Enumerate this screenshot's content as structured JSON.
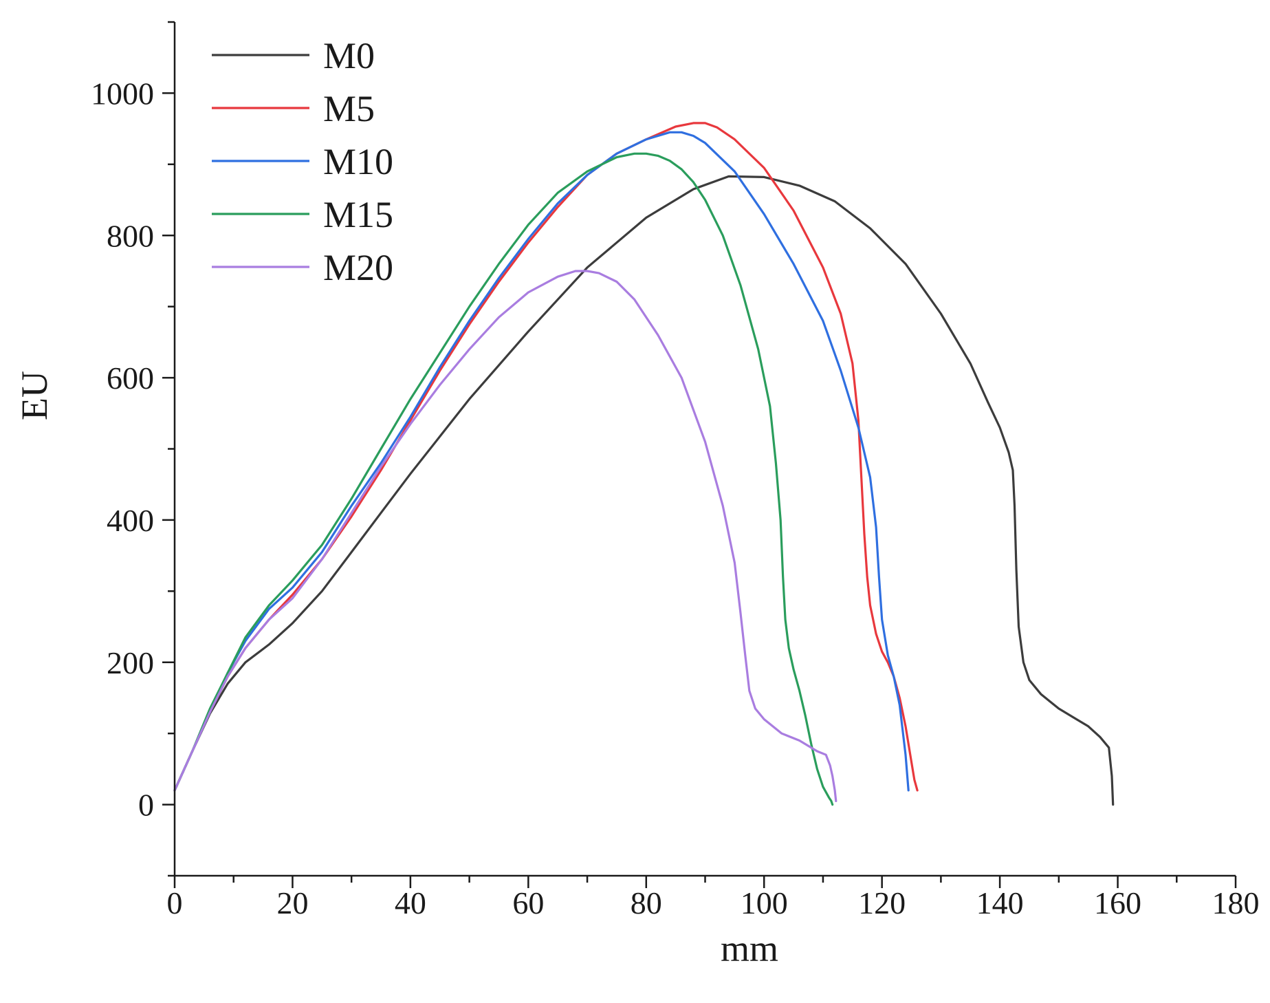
{
  "chart_data": {
    "type": "line",
    "xlabel": "mm",
    "ylabel": "EU",
    "xlim": [
      0,
      180
    ],
    "ylim": [
      -100,
      1100
    ],
    "xticks": [
      0,
      20,
      40,
      60,
      80,
      100,
      120,
      140,
      160,
      180
    ],
    "yticks": [
      0,
      200,
      400,
      600,
      800,
      1000
    ],
    "grid": false,
    "legend_position": "top-left",
    "series": [
      {
        "name": "M0",
        "color": "#3c3c3c",
        "x": [
          0,
          3,
          6,
          9,
          12,
          16,
          20,
          25,
          30,
          35,
          40,
          50,
          60,
          70,
          80,
          88,
          94,
          100,
          106,
          112,
          118,
          124,
          130,
          135,
          138,
          140,
          141.5,
          142.2,
          142.5,
          142.8,
          143.2,
          144,
          145,
          147,
          150,
          153,
          155,
          157,
          158.5,
          159,
          159.2
        ],
        "y": [
          20,
          75,
          128,
          170,
          200,
          225,
          255,
          300,
          355,
          410,
          465,
          570,
          665,
          755,
          825,
          865,
          883,
          882,
          870,
          848,
          810,
          760,
          690,
          620,
          565,
          530,
          495,
          470,
          420,
          330,
          250,
          200,
          175,
          155,
          135,
          120,
          110,
          95,
          80,
          40,
          0
        ]
      },
      {
        "name": "M5",
        "color": "#e8383d",
        "x": [
          0,
          3,
          6,
          9,
          12,
          16,
          20,
          25,
          30,
          35,
          40,
          45,
          50,
          55,
          60,
          65,
          70,
          75,
          80,
          85,
          88,
          90,
          92,
          95,
          100,
          105,
          110,
          113,
          115,
          116,
          116.5,
          117,
          117.5,
          118,
          119,
          120,
          121,
          122,
          123,
          124,
          125,
          125.5,
          126
        ],
        "y": [
          20,
          75,
          130,
          180,
          220,
          260,
          295,
          345,
          405,
          470,
          540,
          610,
          675,
          735,
          790,
          840,
          885,
          915,
          935,
          953,
          958,
          958,
          952,
          935,
          895,
          835,
          755,
          690,
          620,
          540,
          460,
          380,
          320,
          280,
          240,
          215,
          200,
          180,
          150,
          110,
          60,
          35,
          20
        ]
      },
      {
        "name": "M10",
        "color": "#2f6fe0",
        "x": [
          0,
          3,
          6,
          9,
          12,
          16,
          20,
          25,
          30,
          35,
          40,
          45,
          50,
          55,
          60,
          65,
          70,
          75,
          80,
          84,
          86,
          88,
          90,
          95,
          100,
          105,
          110,
          113,
          116,
          118,
          119,
          119.5,
          120,
          121,
          122,
          123,
          124,
          124.5
        ],
        "y": [
          20,
          75,
          130,
          185,
          230,
          275,
          305,
          355,
          420,
          480,
          545,
          615,
          680,
          740,
          795,
          845,
          885,
          915,
          935,
          945,
          945,
          940,
          930,
          890,
          830,
          760,
          680,
          610,
          530,
          460,
          390,
          320,
          260,
          210,
          180,
          140,
          70,
          20
        ]
      },
      {
        "name": "M15",
        "color": "#2a9d5c",
        "x": [
          0,
          3,
          6,
          9,
          12,
          16,
          20,
          25,
          30,
          35,
          40,
          45,
          50,
          55,
          60,
          65,
          70,
          75,
          78,
          80,
          82,
          84,
          86,
          88,
          90,
          93,
          96,
          99,
          101,
          102,
          102.8,
          103.2,
          103.6,
          104.2,
          105,
          106,
          107,
          108,
          109,
          110,
          111,
          111.4,
          111.6
        ],
        "y": [
          20,
          75,
          135,
          185,
          235,
          280,
          315,
          365,
          430,
          500,
          570,
          635,
          700,
          760,
          815,
          860,
          890,
          910,
          915,
          915,
          912,
          905,
          893,
          875,
          850,
          800,
          730,
          640,
          560,
          480,
          400,
          320,
          260,
          220,
          190,
          160,
          125,
          85,
          50,
          25,
          10,
          5,
          0
        ]
      },
      {
        "name": "M20",
        "color": "#a97de0",
        "x": [
          0,
          3,
          6,
          9,
          12,
          16,
          20,
          25,
          30,
          35,
          40,
          45,
          50,
          55,
          60,
          65,
          68,
          70,
          72,
          75,
          78,
          82,
          86,
          90,
          93,
          95,
          96,
          96.8,
          97.5,
          98.5,
          100,
          103,
          106,
          109,
          110.5,
          111.2,
          111.6,
          112,
          112.2
        ],
        "y": [
          20,
          75,
          130,
          180,
          220,
          260,
          290,
          345,
          410,
          475,
          535,
          590,
          640,
          685,
          720,
          742,
          750,
          750,
          747,
          735,
          710,
          660,
          600,
          510,
          420,
          340,
          270,
          210,
          160,
          135,
          120,
          100,
          90,
          75,
          70,
          55,
          40,
          20,
          5
        ]
      }
    ]
  }
}
